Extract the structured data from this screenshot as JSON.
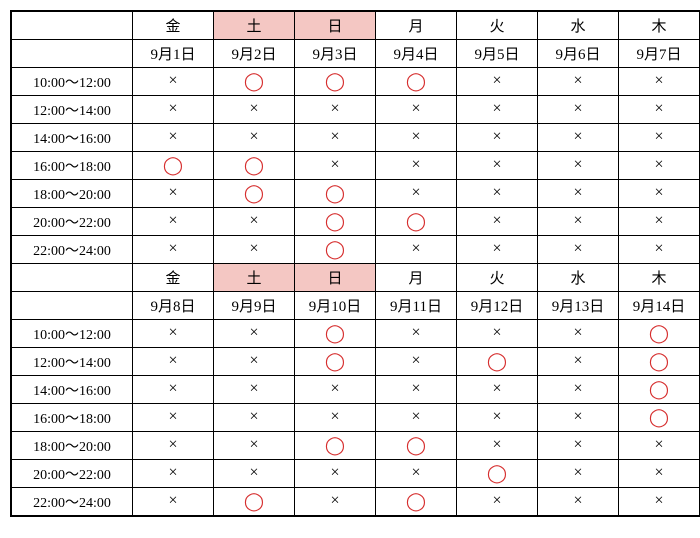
{
  "colors": {
    "weekend_bg": "#f4c7c3",
    "circle": "#d62e2e",
    "cross": "#000000",
    "border": "#000000",
    "background": "#ffffff"
  },
  "symbols": {
    "available": "◯",
    "unavailable": "×"
  },
  "weeks": [
    {
      "days": [
        "金",
        "土",
        "日",
        "月",
        "火",
        "水",
        "木"
      ],
      "weekend_idx": [
        1,
        2
      ],
      "dates": [
        "9月1日",
        "9月2日",
        "9月3日",
        "9月4日",
        "9月5日",
        "9月6日",
        "9月7日"
      ],
      "times": [
        "10:00～12:00",
        "12:00～14:00",
        "14:00～16:00",
        "16:00～18:00",
        "18:00～20:00",
        "20:00～22:00",
        "22:00～24:00"
      ],
      "grid": [
        [
          "x",
          "o",
          "o",
          "o",
          "x",
          "x",
          "x"
        ],
        [
          "x",
          "x",
          "x",
          "x",
          "x",
          "x",
          "x"
        ],
        [
          "x",
          "x",
          "x",
          "x",
          "x",
          "x",
          "x"
        ],
        [
          "o",
          "o",
          "x",
          "x",
          "x",
          "x",
          "x"
        ],
        [
          "x",
          "o",
          "o",
          "x",
          "x",
          "x",
          "x"
        ],
        [
          "x",
          "x",
          "o",
          "o",
          "x",
          "x",
          "x"
        ],
        [
          "x",
          "x",
          "o",
          "x",
          "x",
          "x",
          "x"
        ]
      ]
    },
    {
      "days": [
        "金",
        "土",
        "日",
        "月",
        "火",
        "水",
        "木"
      ],
      "weekend_idx": [
        1,
        2
      ],
      "dates": [
        "9月8日",
        "9月9日",
        "9月10日",
        "9月11日",
        "9月12日",
        "9月13日",
        "9月14日"
      ],
      "times": [
        "10:00～12:00",
        "12:00～14:00",
        "14:00～16:00",
        "16:00～18:00",
        "18:00～20:00",
        "20:00～22:00",
        "22:00～24:00"
      ],
      "grid": [
        [
          "x",
          "x",
          "o",
          "x",
          "x",
          "x",
          "o"
        ],
        [
          "x",
          "x",
          "o",
          "x",
          "o",
          "x",
          "o"
        ],
        [
          "x",
          "x",
          "x",
          "x",
          "x",
          "x",
          "o"
        ],
        [
          "x",
          "x",
          "x",
          "x",
          "x",
          "x",
          "o"
        ],
        [
          "x",
          "x",
          "o",
          "o",
          "x",
          "x",
          "x"
        ],
        [
          "x",
          "x",
          "x",
          "x",
          "o",
          "x",
          "x"
        ],
        [
          "x",
          "o",
          "x",
          "o",
          "x",
          "x",
          "x"
        ]
      ]
    }
  ]
}
